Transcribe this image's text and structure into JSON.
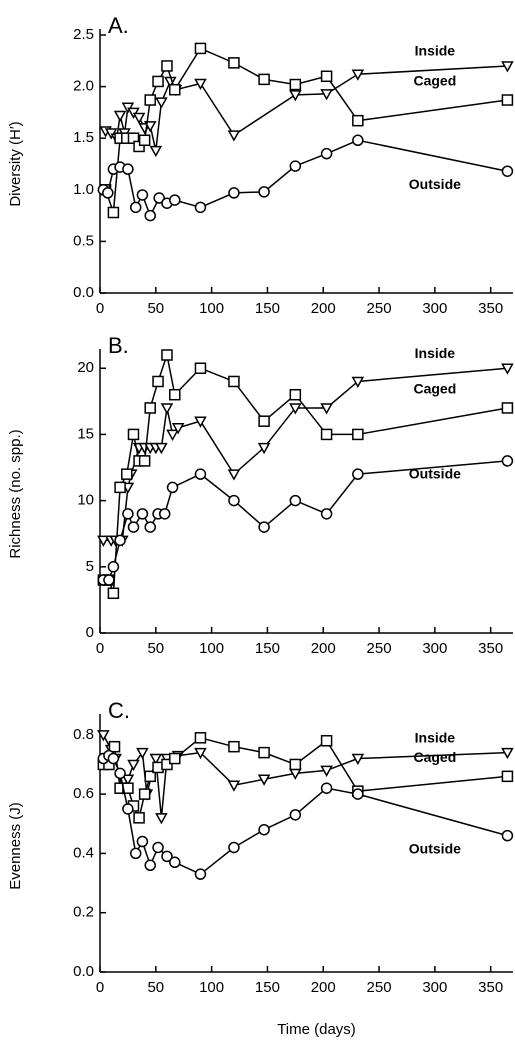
{
  "chart_data": [
    {
      "type": "line",
      "title": "A.",
      "ylabel": "Diversity (H′)",
      "xlim": [
        0,
        370
      ],
      "xticks": [
        0,
        50,
        100,
        150,
        200,
        250,
        300,
        350
      ],
      "ylim": [
        0,
        2.5
      ],
      "yticks": [
        {
          "value": 0,
          "label": "0.0"
        },
        0.5,
        {
          "value": 1,
          "label": "1.0"
        },
        1.5,
        {
          "value": 2,
          "label": "2.0"
        },
        2.5
      ],
      "series": [
        {
          "name": "Inside",
          "color": "#000000",
          "marker": "triangle-down",
          "x": [
            5,
            10,
            15,
            18,
            22,
            25,
            30,
            35,
            40,
            45,
            50,
            55,
            63,
            68,
            90,
            120,
            175,
            203,
            231,
            365
          ],
          "values": [
            1.57,
            1.55,
            1.5,
            1.72,
            1.55,
            1.8,
            1.75,
            1.7,
            1.6,
            1.62,
            1.38,
            1.85,
            2.05,
            1.97,
            2.03,
            1.53,
            1.92,
            1.93,
            2.12,
            2.2
          ]
        },
        {
          "name": "Caged",
          "color": "#000000",
          "marker": "square",
          "x": [
            5,
            12,
            18,
            24,
            30,
            35,
            40,
            45,
            52,
            60,
            67,
            90,
            120,
            147,
            175,
            203,
            231,
            365
          ],
          "values": [
            1.0,
            0.78,
            1.5,
            1.5,
            1.5,
            1.42,
            1.48,
            1.87,
            2.05,
            2.2,
            1.97,
            2.37,
            2.23,
            2.07,
            2.02,
            2.1,
            1.67,
            1.87
          ]
        },
        {
          "name": "Outside",
          "color": "#000000",
          "marker": "circle",
          "x": [
            3,
            7,
            12,
            18,
            25,
            32,
            38,
            45,
            53,
            60,
            67,
            90,
            120,
            147,
            175,
            203,
            231,
            365
          ],
          "values": [
            1.0,
            0.97,
            1.2,
            1.22,
            1.2,
            0.83,
            0.95,
            0.75,
            0.92,
            0.87,
            0.9,
            0.83,
            0.97,
            0.98,
            1.23,
            1.35,
            1.48,
            1.18
          ]
        }
      ]
    },
    {
      "type": "line",
      "title": "B.",
      "ylabel": "Richness (no. spp.)",
      "xlim": [
        0,
        370
      ],
      "xticks": [
        0,
        50,
        100,
        150,
        200,
        250,
        300,
        350
      ],
      "ylim": [
        0,
        21
      ],
      "yticks": [
        0,
        5,
        10,
        15,
        20
      ],
      "series": [
        {
          "name": "Inside",
          "color": "#000000",
          "marker": "triangle-down",
          "x": [
            3,
            10,
            14,
            20,
            25,
            28,
            35,
            40,
            45,
            50,
            55,
            60,
            65,
            70,
            90,
            120,
            147,
            175,
            203,
            231,
            365
          ],
          "values": [
            7,
            7,
            7,
            7,
            11,
            12,
            14,
            14,
            14,
            14,
            14,
            17,
            15,
            15.5,
            16,
            12,
            14,
            17,
            17,
            19,
            20
          ]
        },
        {
          "name": "Caged",
          "color": "#000000",
          "marker": "square",
          "x": [
            3,
            8,
            12,
            18,
            24,
            30,
            35,
            40,
            45,
            52,
            60,
            67,
            90,
            120,
            147,
            175,
            203,
            231,
            365
          ],
          "values": [
            4,
            4,
            3,
            11,
            12,
            15,
            13,
            13,
            17,
            19,
            21,
            18,
            20,
            19,
            16,
            18,
            15,
            15,
            17
          ]
        },
        {
          "name": "Outside",
          "color": "#000000",
          "marker": "circle",
          "x": [
            3,
            8,
            12,
            18,
            25,
            30,
            38,
            45,
            52,
            58,
            65,
            90,
            120,
            147,
            175,
            203,
            231,
            365
          ],
          "values": [
            4,
            4,
            5,
            7,
            9,
            8,
            9,
            8,
            9,
            9,
            11,
            12,
            10,
            8,
            10,
            9,
            12,
            13
          ]
        }
      ]
    },
    {
      "type": "line",
      "title": "C.",
      "ylabel": "Evenness (J)",
      "xlabel": "Time (days)",
      "xlim": [
        0,
        370
      ],
      "xticks": [
        0,
        50,
        100,
        150,
        200,
        250,
        300,
        350
      ],
      "ylim": [
        0,
        0.85
      ],
      "yticks": [
        {
          "value": 0,
          "label": "0.0"
        },
        0.2,
        0.4,
        0.6,
        0.8
      ],
      "series": [
        {
          "name": "Inside",
          "color": "#000000",
          "marker": "triangle-down",
          "x": [
            3,
            10,
            14,
            20,
            25,
            30,
            38,
            42,
            50,
            55,
            60,
            70,
            90,
            120,
            147,
            175,
            203,
            231,
            365
          ],
          "values": [
            0.8,
            0.75,
            0.72,
            0.62,
            0.65,
            0.7,
            0.74,
            0.6,
            0.72,
            0.52,
            0.72,
            0.73,
            0.74,
            0.63,
            0.65,
            0.67,
            0.68,
            0.72,
            0.74
          ]
        },
        {
          "name": "Caged",
          "color": "#000000",
          "marker": "square",
          "x": [
            3,
            8,
            13,
            18,
            25,
            30,
            35,
            40,
            45,
            52,
            60,
            67,
            90,
            120,
            147,
            175,
            203,
            231,
            365
          ],
          "values": [
            0.7,
            0.7,
            0.76,
            0.62,
            0.62,
            0.56,
            0.52,
            0.6,
            0.66,
            0.69,
            0.7,
            0.72,
            0.79,
            0.76,
            0.74,
            0.7,
            0.78,
            0.61,
            0.66
          ]
        },
        {
          "name": "Outside",
          "color": "#000000",
          "marker": "circle",
          "x": [
            3,
            8,
            12,
            18,
            25,
            32,
            38,
            45,
            52,
            60,
            67,
            90,
            120,
            147,
            175,
            203,
            231,
            365
          ],
          "values": [
            0.72,
            0.73,
            0.72,
            0.67,
            0.55,
            0.4,
            0.44,
            0.36,
            0.42,
            0.39,
            0.37,
            0.33,
            0.42,
            0.48,
            0.53,
            0.62,
            0.6,
            0.46
          ]
        }
      ]
    }
  ]
}
